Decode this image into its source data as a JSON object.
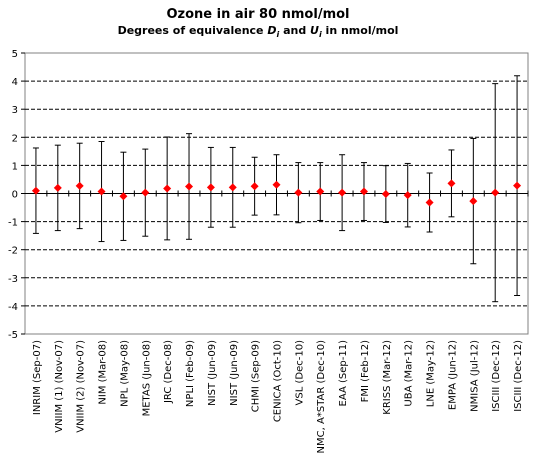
{
  "chart_data": {
    "type": "scatter",
    "title": "Ozone in air   80 nmol/mol",
    "subtitle_parts": [
      "Degrees of equivalence ",
      "D",
      "i",
      " and ",
      "U",
      "i",
      " in nmol/mol"
    ],
    "ylim": [
      -5,
      5
    ],
    "y_ticks": [
      "5",
      "4",
      "3",
      "2",
      "1",
      "0",
      "-1",
      "-2",
      "-3",
      "-4",
      "-5"
    ],
    "grid": true,
    "legend": "none",
    "marker_color": "#ff0000",
    "categories": [
      "INRIM (Sep-07)",
      "VNIIM (1) (Nov-07)",
      "VNIIM (2) (Nov-07)",
      "NIM (Mar-08)",
      "NPL (May-08)",
      "METAS (Jun-08)",
      "JRC (Dec-08)",
      "NPLI (Feb-09)",
      "NIST (Jun-09)",
      "NIST (Jun-09)",
      "CHMI (Sep-09)",
      "CENICA (Oct-10)",
      "VSL (Dec-10)",
      "NMC, A*STAR (Dec-10)",
      "EAA (Sep-11)",
      "FMI (Feb-12)",
      "KRISS (Mar-12)",
      "UBA (Mar-12)",
      "LNE (May-12)",
      "EMPA (Jun-12)",
      "NMISA (Jul-12)",
      "ISCIII (Dec-12)",
      "ISCIII (Dec-12)"
    ],
    "values": [
      0.1,
      0.2,
      0.27,
      0.07,
      -0.1,
      0.03,
      0.18,
      0.25,
      0.22,
      0.22,
      0.26,
      0.31,
      0.03,
      0.07,
      0.03,
      0.07,
      -0.02,
      -0.06,
      -0.32,
      0.36,
      -0.27,
      0.03,
      0.28
    ],
    "uncertainty": [
      1.52,
      1.52,
      1.52,
      1.78,
      1.57,
      1.55,
      1.83,
      1.88,
      1.42,
      1.42,
      1.03,
      1.07,
      1.07,
      1.03,
      1.35,
      1.03,
      1.01,
      1.13,
      1.05,
      1.19,
      2.23,
      3.88,
      3.91
    ]
  }
}
